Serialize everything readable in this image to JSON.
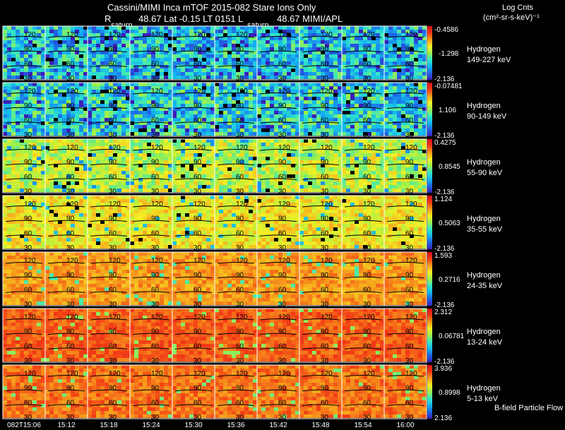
{
  "header": {
    "line1": "Cassini/MIMI Inca mTOF  2015-082   Stare   Ions Only",
    "line2_r": "R",
    "line2": "48.67 Lat -0.15 LT 0151 L",
    "line2_b": "48.67  MIMI/APL",
    "saturn_labels": [
      "saturn",
      "saturn"
    ],
    "units_title": "Log Cnts",
    "units": "(cm²-sr-s-keV)⁻¹"
  },
  "footer_note": "B-field Particle Flow",
  "colors": {
    "background": "#000000",
    "text": "#ffffff",
    "colorbar": [
      "#3b1fb8",
      "#1f63e6",
      "#13b6f0",
      "#35e8c3",
      "#9cf04b",
      "#f3ef24",
      "#f79a1c",
      "#f23a16",
      "#d4101a"
    ]
  },
  "chart_data": {
    "type": "heatmap",
    "x_tick_labels": [
      "082T15:06",
      "15:12",
      "15:18",
      "15:24",
      "15:30",
      "15:36",
      "15:42",
      "15:48",
      "15:54",
      "16:00"
    ],
    "panel_tick_labels": [
      "120",
      "90",
      "60",
      "30"
    ],
    "panels": [
      {
        "species": "Hydrogen",
        "energy": "149-227 keV",
        "cb_max": "-0.4586",
        "cb_mid": "-1.298",
        "cb_min": "-2.136",
        "level": 0.28,
        "spread": 0.2
      },
      {
        "species": "Hydrogen",
        "energy": "90-149 keV",
        "cb_max": "-0.07481",
        "cb_mid": "1.106",
        "cb_min": "-2.136",
        "level": 0.32,
        "spread": 0.2
      },
      {
        "species": "Hydrogen",
        "energy": "55-90 keV",
        "cb_max": "0.4275",
        "cb_mid": "0.8545",
        "cb_min": "-2.136",
        "level": 0.55,
        "spread": 0.14
      },
      {
        "species": "Hydrogen",
        "energy": "35-55 keV",
        "cb_max": "1.124",
        "cb_mid": "0.5063",
        "cb_min": "-2.136",
        "level": 0.63,
        "spread": 0.1
      },
      {
        "species": "Hydrogen",
        "energy": "24-35 keV",
        "cb_max": "1.593",
        "cb_mid": "0.2716",
        "cb_min": "-2.136",
        "level": 0.75,
        "spread": 0.07
      },
      {
        "species": "Hydrogen",
        "energy": "13-24 keV",
        "cb_max": "2.312",
        "cb_mid": "0.06781",
        "cb_min": "-2.136",
        "level": 0.83,
        "spread": 0.06
      },
      {
        "species": "Hydrogen",
        "energy": "5-13 keV",
        "cb_max": "3.936",
        "cb_mid": "0.8998",
        "cb_min": "2.136",
        "level": 0.8,
        "spread": 0.07
      }
    ]
  }
}
